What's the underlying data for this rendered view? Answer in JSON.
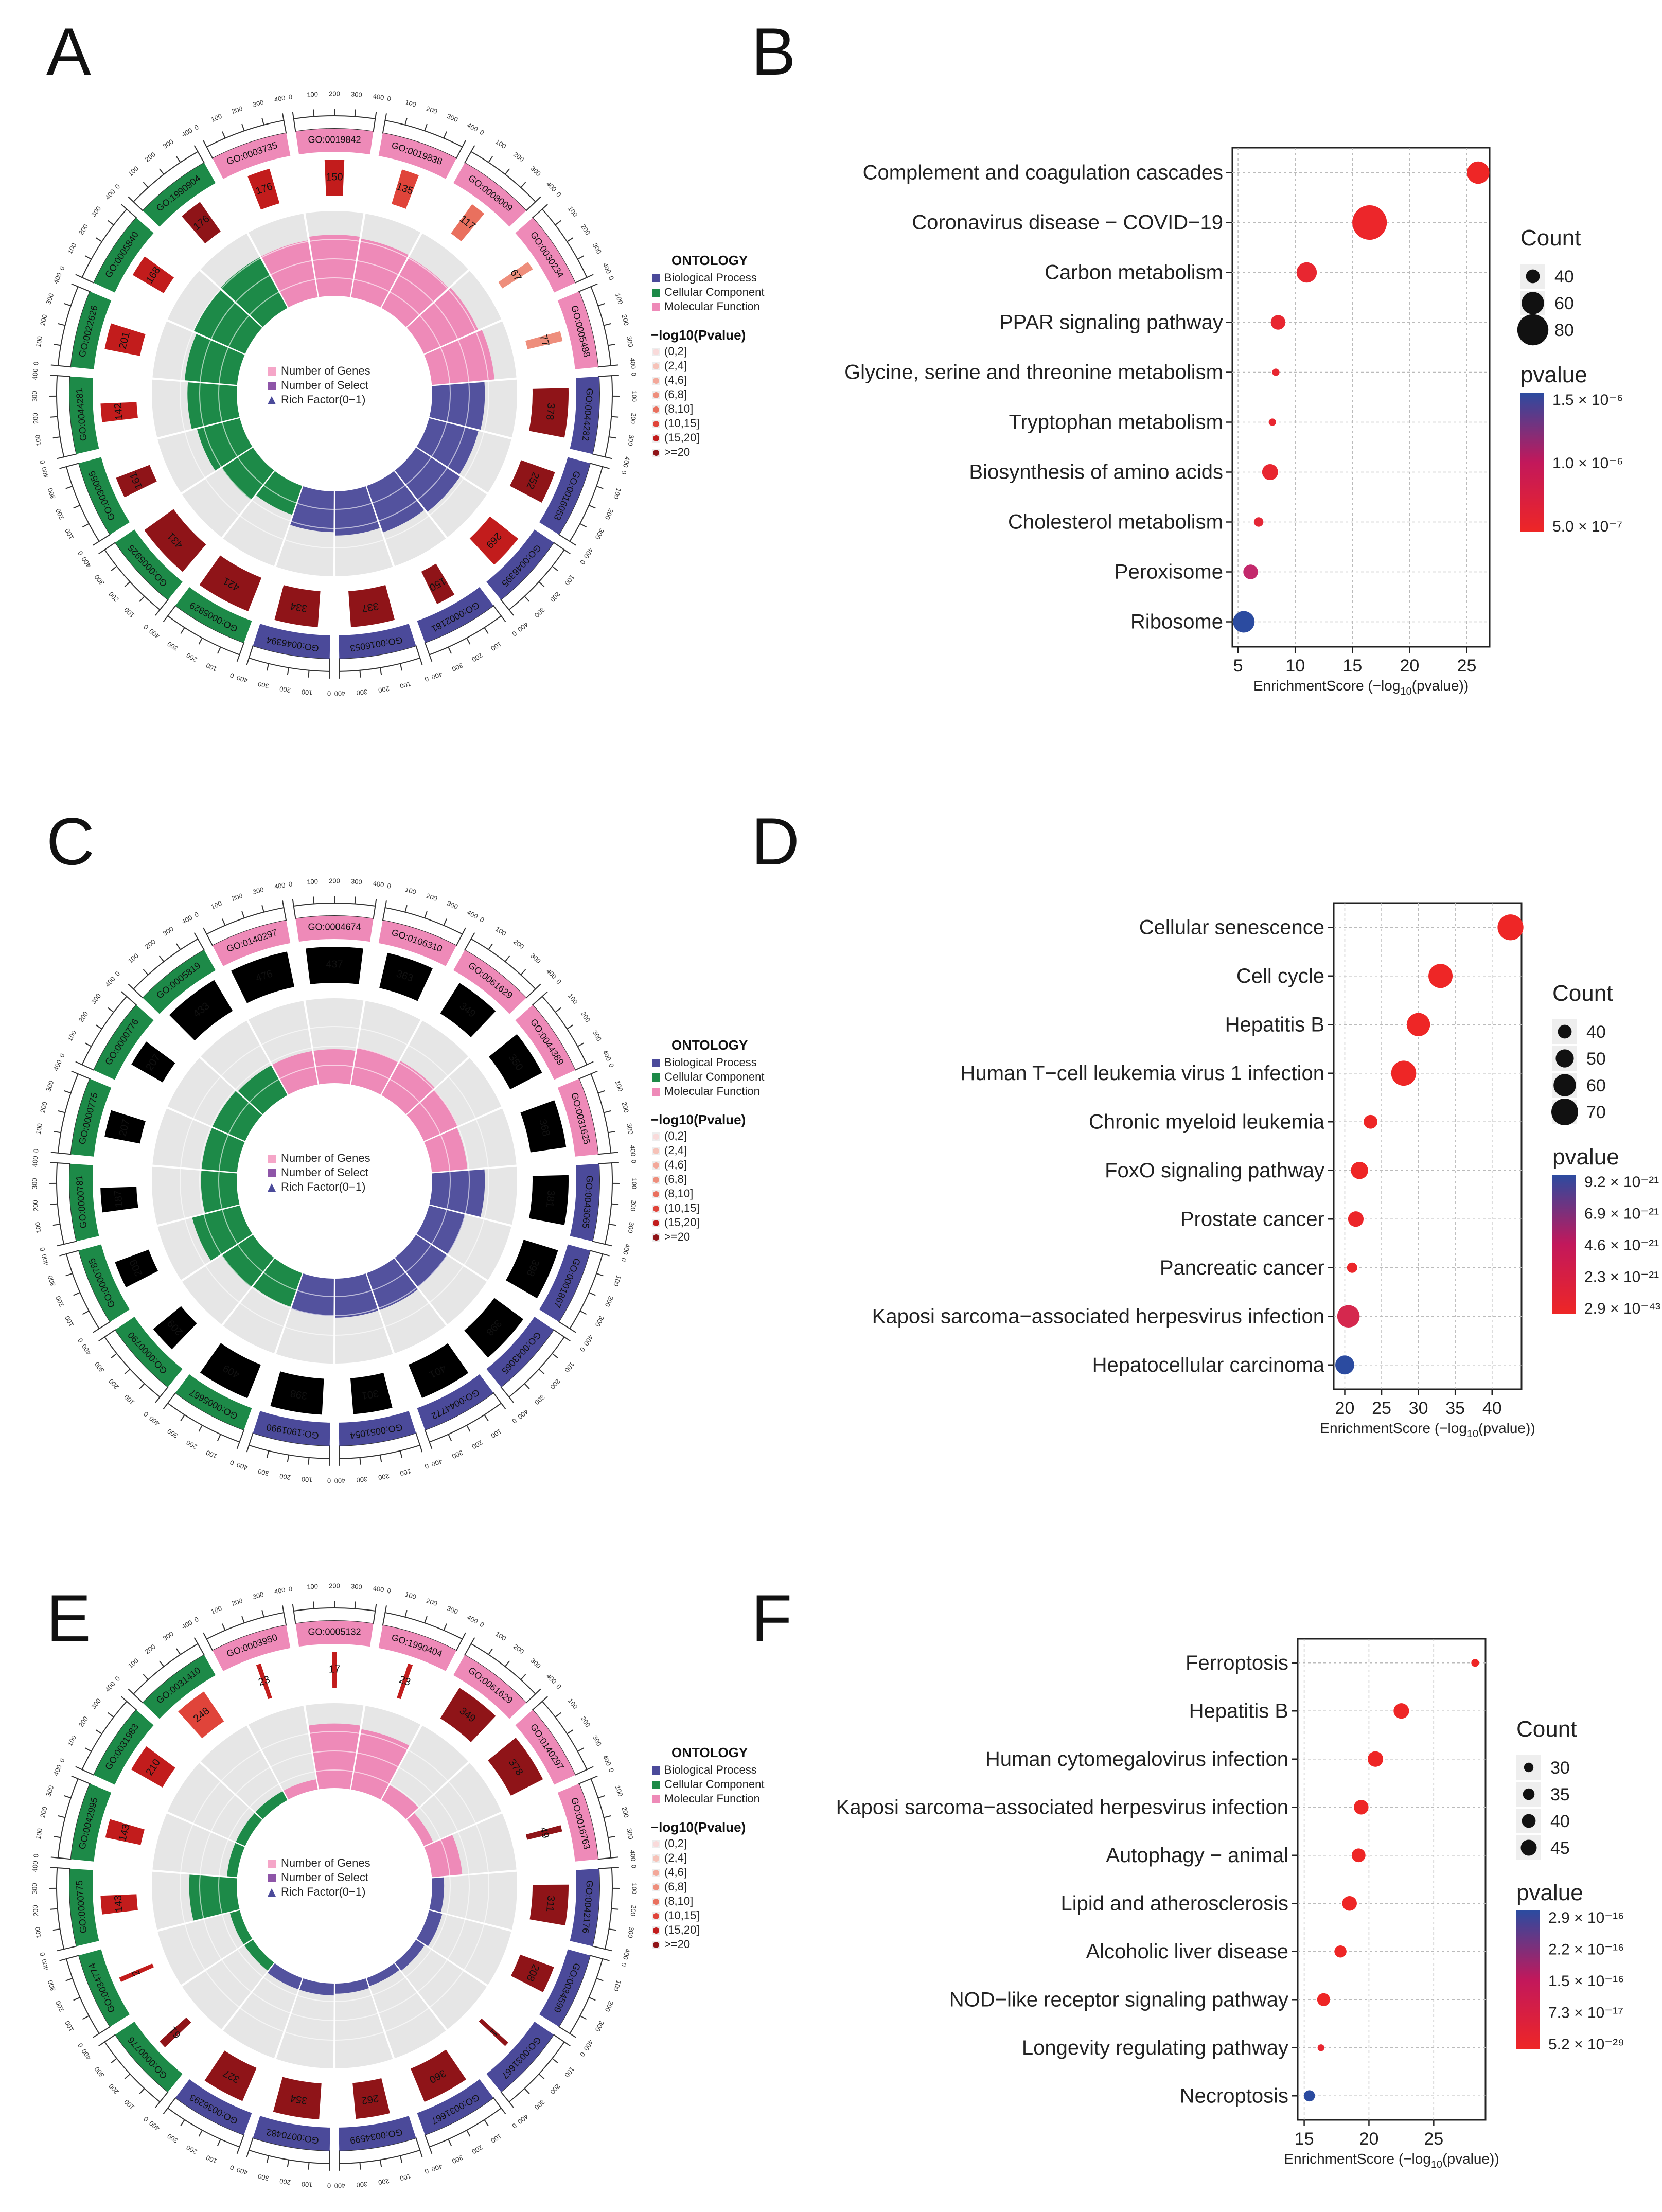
{
  "panels": [
    {
      "label": "A",
      "type": "circos",
      "items": [
        {
          "go": "GO:0019842",
          "ont": "MF",
          "genes": 150,
          "sel": 40,
          "rich": 0.72
        },
        {
          "go": "GO:0019838",
          "ont": "MF",
          "genes": 135,
          "sel": 35,
          "rich": 0.7
        },
        {
          "go": "GO:0008009",
          "ont": "MF",
          "genes": 117,
          "sel": 31,
          "rich": 0.68
        },
        {
          "go": "GO:0030234",
          "ont": "MF",
          "genes": 67,
          "sel": 22,
          "rich": 0.7
        },
        {
          "go": "GO:0005488",
          "ont": "MF",
          "genes": 77,
          "sel": 28,
          "rich": 0.74
        },
        {
          "go": "GO:0044282",
          "ont": "BP",
          "genes": 378,
          "sel": 88,
          "rich": 0.62
        },
        {
          "go": "GO:0016053",
          "ont": "BP",
          "genes": 252,
          "sel": 58,
          "rich": 0.6
        },
        {
          "go": "GO:0046395",
          "ont": "BP",
          "genes": 269,
          "sel": 66,
          "rich": 0.62
        },
        {
          "go": "GO:0002181",
          "ont": "BP",
          "genes": 150,
          "sel": 50,
          "rich": 0.58
        },
        {
          "go": "GO:0016053",
          "ont": "BP",
          "genes": 337,
          "sel": 73,
          "rich": 0.52
        },
        {
          "go": "GO:0046394",
          "ont": "BP",
          "genes": 334,
          "sel": 72,
          "rich": 0.48
        },
        {
          "go": "GO:0005829",
          "ont": "CC",
          "genes": 421,
          "sel": 56,
          "rich": 0.36
        },
        {
          "go": "GO:0005925",
          "ont": "CC",
          "genes": 431,
          "sel": 46,
          "rich": 0.44
        },
        {
          "go": "GO:0030055",
          "ont": "CC",
          "genes": 161,
          "sel": 52,
          "rich": 0.52
        },
        {
          "go": "GO:0044281",
          "ont": "CC",
          "genes": 142,
          "sel": 58,
          "rich": 0.58
        },
        {
          "go": "GO:0022626",
          "ont": "CC",
          "genes": 201,
          "sel": 58,
          "rich": 0.62
        },
        {
          "go": "GO:0005840",
          "ont": "CC",
          "genes": 168,
          "sel": 57,
          "rich": 0.66
        },
        {
          "go": "GO:1990904",
          "ont": "CC",
          "genes": 176,
          "sel": 51,
          "rich": 0.68
        },
        {
          "go": "GO:0003735",
          "ont": "MF",
          "genes": 176,
          "sel": 51,
          "rich": 0.68
        }
      ],
      "pv": [
        6,
        5,
        4,
        3,
        3,
        7,
        7,
        6,
        7,
        7,
        7,
        7,
        7,
        7,
        6,
        6,
        6,
        7,
        6
      ]
    },
    {
      "label": "B",
      "type": "dot",
      "chart_data": {
        "type": "scatter",
        "xlabel": "EnrichmentScore (−log",
        "xlabel_sub": "10",
        "xlabel_tail": "(pvalue))",
        "xlim": [
          4.5,
          27
        ],
        "xticks": [
          5,
          10,
          15,
          20,
          25
        ],
        "size_title": "Count",
        "size_values": [
          40,
          60,
          80
        ],
        "color_title": "pvalue",
        "color_ticks": [
          "1.5 × 10⁻⁶",
          "1.0 × 10⁻⁶",
          "5.0 × 10⁻⁷"
        ],
        "terms": [
          "Complement and coagulation cascades",
          "Coronavirus disease − COVID−19",
          "Carbon metabolism",
          "PPAR signaling pathway",
          "Glycine, serine and threonine metabolism",
          "Tryptophan metabolism",
          "Biosynthesis of amino acids",
          "Cholesterol metabolism",
          "Peroxisome",
          "Ribosome"
        ],
        "x": [
          26,
          16.5,
          11,
          8.5,
          8.3,
          8.0,
          7.8,
          6.8,
          6.1,
          5.5
        ],
        "count": [
          60,
          88,
          55,
          42,
          25,
          25,
          45,
          30,
          42,
          58
        ],
        "color_frac": [
          0.0,
          0.02,
          0.05,
          0.05,
          0.05,
          0.05,
          0.05,
          0.08,
          0.35,
          1.0
        ]
      }
    },
    {
      "label": "C",
      "type": "circos",
      "items": [
        {
          "go": "GO:0004674",
          "ont": "MF",
          "genes": 437,
          "sel": 104,
          "rich": 0.4
        },
        {
          "go": "GO:0106310",
          "ont": "MF",
          "genes": 363,
          "sel": 89,
          "rich": 0.44
        },
        {
          "go": "GO:0061629",
          "ont": "MF",
          "genes": 349,
          "sel": 85,
          "rich": 0.46
        },
        {
          "go": "GO:0044389",
          "ont": "MF",
          "genes": 350,
          "sel": 89,
          "rich": 0.44
        },
        {
          "go": "GO:0031625",
          "ont": "MF",
          "genes": 368,
          "sel": 84,
          "rich": 0.42
        },
        {
          "go": "GO:0043065",
          "ont": "BP",
          "genes": 381,
          "sel": 121,
          "rich": 0.62
        },
        {
          "go": "GO:0001867",
          "ont": "BP",
          "genes": 398,
          "sel": 88,
          "rich": 0.44
        },
        {
          "go": "GO:0043065",
          "ont": "BP",
          "genes": 398,
          "sel": 98,
          "rich": 0.44
        },
        {
          "go": "GO:0044772",
          "ont": "BP",
          "genes": 401,
          "sel": 103,
          "rich": 0.46
        },
        {
          "go": "GO:0051054",
          "ont": "BP",
          "genes": 301,
          "sel": 84,
          "rich": 0.46
        },
        {
          "go": "GO:1901990",
          "ont": "BP",
          "genes": 398,
          "sel": 89,
          "rich": 0.44
        },
        {
          "go": "GO:0005667",
          "ont": "CC",
          "genes": 409,
          "sel": 81,
          "rich": 0.42
        },
        {
          "go": "GO:0000790",
          "ont": "CC",
          "genes": 209,
          "sel": 72,
          "rich": 0.44
        },
        {
          "go": "GO:0000785",
          "ont": "CC",
          "genes": 209,
          "sel": 47,
          "rich": 0.58
        },
        {
          "go": "GO:0000781",
          "ont": "CC",
          "genes": 187,
          "sel": 52,
          "rich": 0.42
        },
        {
          "go": "GO:0000775",
          "ont": "CC",
          "genes": 207,
          "sel": 48,
          "rich": 0.42
        },
        {
          "go": "GO:0000776",
          "ont": "CC",
          "genes": 207,
          "sel": 59,
          "rich": 0.42
        },
        {
          "go": "GO:0005819",
          "ont": "CC",
          "genes": 433,
          "sel": 116,
          "rich": 0.4
        },
        {
          "go": "GO:0140297",
          "ont": "MF",
          "genes": 476,
          "sel": 116,
          "rich": 0.4
        }
      ],
      "pv": [
        8,
        8,
        8,
        8,
        8,
        8,
        8,
        8,
        8,
        8,
        8,
        8,
        8,
        8,
        8,
        8,
        8,
        8,
        8
      ]
    },
    {
      "label": "D",
      "type": "dot",
      "chart_data": {
        "type": "scatter",
        "xlabel": "EnrichmentScore (−log",
        "xlabel_sub": "10",
        "xlabel_tail": "(pvalue))",
        "xlim": [
          18.5,
          44
        ],
        "xticks": [
          20,
          25,
          30,
          35,
          40
        ],
        "size_title": "Count",
        "size_values": [
          40,
          50,
          60,
          70
        ],
        "color_title": "pvalue",
        "color_ticks": [
          "9.2 × 10⁻²¹",
          "6.9 × 10⁻²¹",
          "4.6 × 10⁻²¹",
          "2.3 × 10⁻²¹",
          "2.9 × 10⁻⁴³"
        ],
        "terms": [
          "Cellular senescence",
          "Cell cycle",
          "Hepatitis B",
          "Human T−cell leukemia virus 1 infection",
          "Chronic myeloid leukemia",
          "FoxO signaling pathway",
          "Prostate cancer",
          "Pancreatic cancer",
          "Kaposi sarcoma−associated herpesvirus infection",
          "Hepatocellular carcinoma"
        ],
        "x": [
          42.5,
          33,
          30,
          28,
          23.5,
          22,
          21.5,
          21,
          20.5,
          20
        ],
        "count": [
          68,
          64,
          62,
          66,
          40,
          48,
          44,
          32,
          60,
          52
        ],
        "color_frac": [
          0.0,
          0.0,
          0.0,
          0.0,
          0.0,
          0.0,
          0.02,
          0.02,
          0.2,
          1.0
        ]
      }
    },
    {
      "label": "E",
      "type": "circos",
      "items": [
        {
          "go": "GO:0005132",
          "ont": "MF",
          "genes": 17,
          "sel": 13,
          "rich": 0.76
        },
        {
          "go": "GO:1990404",
          "ont": "MF",
          "genes": 23,
          "sel": 14,
          "rich": 0.72
        },
        {
          "go": "GO:0061629",
          "ont": "MF",
          "genes": 349,
          "sel": 37,
          "rich": 0.2
        },
        {
          "go": "GO:0140297",
          "ont": "MF",
          "genes": 378,
          "sel": 33,
          "rich": 0.12
        },
        {
          "go": "GO:0016763",
          "ont": "MF",
          "genes": 49,
          "sel": 15,
          "rich": 0.36
        },
        {
          "go": "GO:0042176",
          "ont": "BP",
          "genes": 311,
          "sel": 35,
          "rich": 0.14
        },
        {
          "go": "GO:0034599",
          "ont": "BP",
          "genes": 208,
          "sel": 26,
          "rich": 0.16
        },
        {
          "go": "GO:0031667",
          "ont": "BP",
          "genes": 1,
          "sel": 1,
          "rich": 0.12
        },
        {
          "go": "GO:0031667",
          "ont": "BP",
          "genes": 360,
          "sel": 33,
          "rich": 0.1
        },
        {
          "go": "GO:0034599",
          "ont": "BP",
          "genes": 262,
          "sel": 26,
          "rich": 0.12
        },
        {
          "go": "GO:0070482",
          "ont": "BP",
          "genes": 354,
          "sel": 36,
          "rich": 0.14
        },
        {
          "go": "GO:0036293",
          "ont": "BP",
          "genes": 327,
          "sel": 33,
          "rich": 0.14
        },
        {
          "go": "GO:0000776",
          "ont": "CC",
          "genes": 61,
          "sel": 20,
          "rich": 0.12
        },
        {
          "go": "GO:0034774",
          "ont": "CC",
          "genes": 2,
          "sel": 1,
          "rich": 0.12
        },
        {
          "go": "GO:0000775",
          "ont": "CC",
          "genes": 143,
          "sel": 20,
          "rich": 0.56
        },
        {
          "go": "GO:0042995",
          "ont": "CC",
          "genes": 143,
          "sel": 20,
          "rich": 0.12
        },
        {
          "go": "GO:0031983",
          "ont": "CC",
          "genes": 210,
          "sel": 24,
          "rich": 0.12
        },
        {
          "go": "GO:0031410",
          "ont": "CC",
          "genes": 248,
          "sel": 25,
          "rich": 0.12
        },
        {
          "go": "GO:0003950",
          "ont": "MF",
          "genes": 23,
          "sel": 15,
          "rich": 0.12
        }
      ],
      "pv": [
        6,
        6,
        7,
        7,
        7,
        7,
        7,
        7,
        7,
        7,
        7,
        7,
        7,
        6,
        6,
        6,
        6,
        5,
        6
      ]
    },
    {
      "label": "F",
      "type": "dot",
      "chart_data": {
        "type": "scatter",
        "xlabel": "EnrichmentScore (−log",
        "xlabel_sub": "10",
        "xlabel_tail": "(pvalue))",
        "xlim": [
          14.5,
          29
        ],
        "xticks": [
          15,
          20,
          25
        ],
        "size_title": "Count",
        "size_values": [
          30,
          35,
          40,
          45
        ],
        "color_title": "pvalue",
        "color_ticks": [
          "2.9 × 10⁻¹⁶",
          "2.2 × 10⁻¹⁶",
          "1.5 × 10⁻¹⁶",
          "7.3 × 10⁻¹⁷",
          "5.2 × 10⁻²⁹"
        ],
        "terms": [
          "Ferroptosis",
          "Hepatitis B",
          "Human cytomegalovirus infection",
          "Kaposi sarcoma−associated herpesvirus infection",
          "Autophagy − animal",
          "Lipid and atherosclerosis",
          "Alcoholic liver disease",
          "NOD−like receptor signaling pathway",
          "Longevity regulating pathway",
          "Necroptosis"
        ],
        "x": [
          28.2,
          22.5,
          20.5,
          19.4,
          19.2,
          18.5,
          17.8,
          16.5,
          16.3,
          15.4
        ],
        "count": [
          26,
          44,
          44,
          42,
          40,
          42,
          36,
          38,
          24,
          34
        ],
        "color_frac": [
          0.0,
          0.0,
          0.0,
          0.0,
          0.0,
          0.0,
          0.0,
          0.0,
          0.05,
          1.0
        ]
      }
    }
  ],
  "legend": {
    "ontology_title": "ONTOLOGY",
    "ontology": [
      "Biological Process",
      "Cellular Component",
      "Molecular Function"
    ],
    "pvalue_title": "−log10(Pvalue)",
    "pvalue_bins": [
      "(0,2]",
      "(2,4]",
      "(4,6]",
      "(6,8]",
      "(8,10]",
      "(10,15]",
      "(15,20]",
      ">=20"
    ],
    "inner": [
      "Number of Genes",
      "Number of Select",
      "Rich Factor(0−1)"
    ]
  },
  "ring_ticks": [
    "0",
    "100",
    "200",
    "300",
    "400"
  ],
  "colors": {
    "BP": "#4B4A9A",
    "CC": "#1D8A48",
    "MF": "#EE8AB8",
    "BP_light": "#9FA0D3",
    "pv": [
      "#F9DADA",
      "#F6C2B8",
      "#F3A89A",
      "#EE8E7C",
      "#E9705E",
      "#E0443A",
      "#C21C1C",
      "#8F1418"
    ],
    "grad_top": "#2B4BA0",
    "grad_mid": "#C2185B",
    "grad_bot": "#EE2626",
    "ring_bg": "#E6E6E6",
    "sel": "#8E55A8"
  }
}
